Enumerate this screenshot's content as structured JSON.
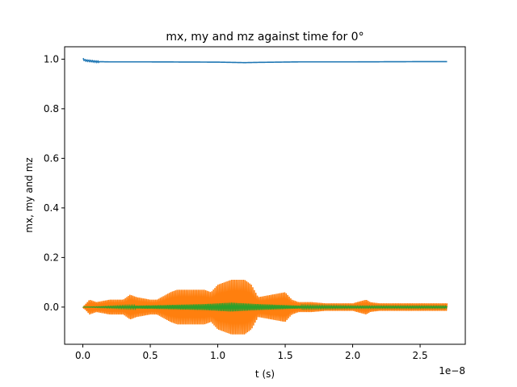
{
  "chart_data": {
    "type": "line",
    "title": "mx, my and mz against time for 0°",
    "xlabel": "t (s)",
    "ylabel": "mx, my and mz",
    "x_offset_label": "1e−8",
    "x_scale": 1e-08,
    "xlim": [
      -0.135,
      2.835
    ],
    "ylim": [
      -0.15,
      1.05
    ],
    "x_ticks": [
      0.0,
      0.5,
      1.0,
      1.5,
      2.0,
      2.5
    ],
    "x_tick_labels": [
      "0.0",
      "0.5",
      "1.0",
      "1.5",
      "2.0",
      "2.5"
    ],
    "y_ticks": [
      0.0,
      0.2,
      0.4,
      0.6,
      0.8,
      1.0
    ],
    "y_tick_labels": [
      "0.0",
      "0.2",
      "0.4",
      "0.6",
      "0.8",
      "1.0"
    ],
    "grid": false,
    "legend": "none",
    "series": [
      {
        "color": "#1f77b4",
        "style": "nearly constant near 1.0",
        "x": [
          0.0,
          0.02,
          0.05,
          0.1,
          0.2,
          0.5,
          1.0,
          1.2,
          1.3,
          1.6,
          2.0,
          2.5,
          2.7
        ],
        "y": [
          1.0,
          0.995,
          0.993,
          0.99,
          0.989,
          0.989,
          0.988,
          0.986,
          0.987,
          0.989,
          0.989,
          0.99,
          0.99
        ]
      },
      {
        "color": "#ff7f0e",
        "style": "oscillation about 0; envelope amplitude shown",
        "x": [
          0.0,
          0.05,
          0.1,
          0.2,
          0.3,
          0.35,
          0.4,
          0.5,
          0.55,
          0.6,
          0.65,
          0.7,
          0.8,
          0.9,
          0.95,
          1.0,
          1.05,
          1.1,
          1.15,
          1.2,
          1.25,
          1.3,
          1.4,
          1.5,
          1.55,
          1.6,
          1.7,
          1.8,
          2.0,
          2.1,
          2.13,
          2.2,
          2.5,
          2.7
        ],
        "amplitude": [
          0.0,
          0.03,
          0.02,
          0.03,
          0.03,
          0.05,
          0.04,
          0.03,
          0.03,
          0.045,
          0.06,
          0.07,
          0.07,
          0.07,
          0.06,
          0.09,
          0.1,
          0.11,
          0.11,
          0.11,
          0.09,
          0.04,
          0.05,
          0.06,
          0.03,
          0.02,
          0.02,
          0.015,
          0.015,
          0.03,
          0.02,
          0.015,
          0.015,
          0.015
        ]
      },
      {
        "color": "#2ca02c",
        "style": "small oscillation about 0; envelope amplitude shown",
        "x": [
          0.0,
          0.3,
          0.6,
          0.9,
          1.1,
          1.3,
          1.6,
          2.0,
          2.7
        ],
        "amplitude": [
          0.0,
          0.005,
          0.008,
          0.012,
          0.018,
          0.012,
          0.006,
          0.004,
          0.004
        ]
      }
    ]
  }
}
